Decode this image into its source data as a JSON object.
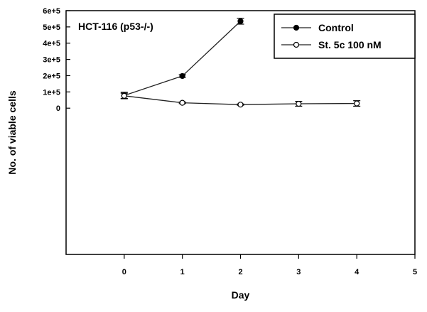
{
  "chart_data": {
    "type": "line",
    "title": "",
    "annotation": "HCT-116 (p53-/-)",
    "xlabel": "Day",
    "ylabel": "No. of viable cells",
    "xlim": [
      -1,
      5
    ],
    "ylim": [
      -900000,
      600000
    ],
    "x_ticks": [
      0,
      1,
      2,
      3,
      4,
      5
    ],
    "x_tick_labels": [
      "0",
      "1",
      "2",
      "3",
      "4",
      "5"
    ],
    "y_ticks": [
      0,
      100000,
      200000,
      300000,
      400000,
      500000,
      600000
    ],
    "y_tick_labels": [
      "0",
      "1e+5",
      "2e+5",
      "3e+5",
      "4e+5",
      "5e+5",
      "6e+5"
    ],
    "legend_position": "top-right",
    "series": [
      {
        "name": "Control",
        "marker": "filled-circle",
        "x": [
          0,
          1,
          2
        ],
        "y": [
          78000,
          198000,
          535000
        ],
        "error": [
          20000,
          8000,
          18000
        ]
      },
      {
        "name": "St. 5c 100 nM",
        "marker": "open-circle",
        "x": [
          0,
          1,
          2,
          3,
          4
        ],
        "y": [
          76000,
          33000,
          22000,
          27000,
          29000
        ],
        "error": [
          16000,
          5000,
          4000,
          15000,
          17000
        ]
      }
    ]
  }
}
